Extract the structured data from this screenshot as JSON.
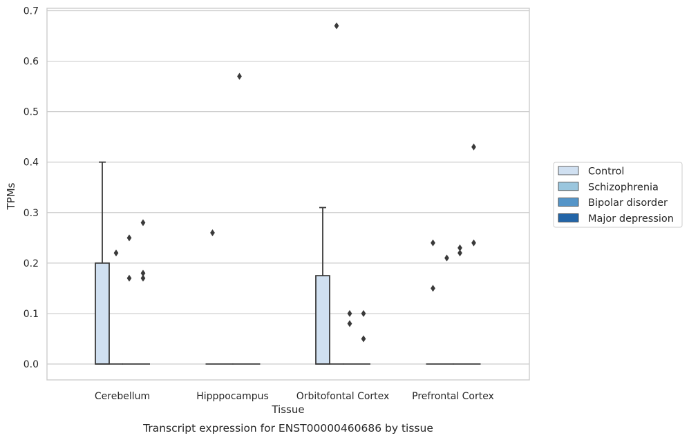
{
  "chart_data": {
    "type": "box",
    "caption": "Transcript expression for ENST00000460686 by tissue",
    "xlabel": "Tissue",
    "ylabel": "TPMs",
    "ylim": [
      -0.032,
      0.705
    ],
    "yticks": [
      0.0,
      0.1,
      0.2,
      0.3,
      0.4,
      0.5,
      0.6,
      0.7
    ],
    "ytick_labels": [
      "0.0",
      "0.1",
      "0.2",
      "0.3",
      "0.4",
      "0.5",
      "0.6",
      "0.7"
    ],
    "grid": true,
    "legend_position": "right",
    "categories": [
      "Cerebellum",
      "Hipppocampus",
      "Orbitofontal Cortex",
      "Prefrontal Cortex"
    ],
    "series": [
      {
        "name": "Control",
        "color": "#d0e0f1"
      },
      {
        "name": "Schizophrenia",
        "color": "#9ac6de"
      },
      {
        "name": "Bipolar disorder",
        "color": "#5595c8"
      },
      {
        "name": "Major depression",
        "color": "#2365a7"
      }
    ],
    "boxes": [
      {
        "category": "Cerebellum",
        "series": "Control",
        "q1": 0.0,
        "median": 0.0,
        "q3": 0.2,
        "whisker_low": 0.0,
        "whisker_high": 0.4,
        "outliers": []
      },
      {
        "category": "Cerebellum",
        "series": "Schizophrenia",
        "q1": 0.0,
        "median": 0.0,
        "q3": 0.0,
        "whisker_low": 0.0,
        "whisker_high": 0.0,
        "outliers": [
          0.22
        ]
      },
      {
        "category": "Cerebellum",
        "series": "Bipolar disorder",
        "q1": 0.0,
        "median": 0.0,
        "q3": 0.0,
        "whisker_low": 0.0,
        "whisker_high": 0.0,
        "outliers": [
          0.25,
          0.17
        ]
      },
      {
        "category": "Cerebellum",
        "series": "Major depression",
        "q1": 0.0,
        "median": 0.0,
        "q3": 0.0,
        "whisker_low": 0.0,
        "whisker_high": 0.0,
        "outliers": [
          0.28,
          0.18,
          0.17
        ]
      },
      {
        "category": "Hipppocampus",
        "series": "Control",
        "q1": 0.0,
        "median": 0.0,
        "q3": 0.0,
        "whisker_low": 0.0,
        "whisker_high": 0.0,
        "outliers": [
          0.26
        ]
      },
      {
        "category": "Hipppocampus",
        "series": "Schizophrenia",
        "q1": 0.0,
        "median": 0.0,
        "q3": 0.0,
        "whisker_low": 0.0,
        "whisker_high": 0.0,
        "outliers": []
      },
      {
        "category": "Hipppocampus",
        "series": "Bipolar disorder",
        "q1": 0.0,
        "median": 0.0,
        "q3": 0.0,
        "whisker_low": 0.0,
        "whisker_high": 0.0,
        "outliers": [
          0.57
        ]
      },
      {
        "category": "Hipppocampus",
        "series": "Major depression",
        "q1": 0.0,
        "median": 0.0,
        "q3": 0.0,
        "whisker_low": 0.0,
        "whisker_high": 0.0,
        "outliers": []
      },
      {
        "category": "Orbitofontal Cortex",
        "series": "Control",
        "q1": 0.0,
        "median": 0.0,
        "q3": 0.175,
        "whisker_low": 0.0,
        "whisker_high": 0.31,
        "outliers": []
      },
      {
        "category": "Orbitofontal Cortex",
        "series": "Schizophrenia",
        "q1": 0.0,
        "median": 0.0,
        "q3": 0.0,
        "whisker_low": 0.0,
        "whisker_high": 0.0,
        "outliers": [
          0.67
        ]
      },
      {
        "category": "Orbitofontal Cortex",
        "series": "Bipolar disorder",
        "q1": 0.0,
        "median": 0.0,
        "q3": 0.0,
        "whisker_low": 0.0,
        "whisker_high": 0.0,
        "outliers": [
          0.1,
          0.08
        ]
      },
      {
        "category": "Orbitofontal Cortex",
        "series": "Major depression",
        "q1": 0.0,
        "median": 0.0,
        "q3": 0.0,
        "whisker_low": 0.0,
        "whisker_high": 0.0,
        "outliers": [
          0.1,
          0.05
        ]
      },
      {
        "category": "Prefrontal Cortex",
        "series": "Control",
        "q1": 0.0,
        "median": 0.0,
        "q3": 0.0,
        "whisker_low": 0.0,
        "whisker_high": 0.0,
        "outliers": [
          0.24,
          0.15
        ]
      },
      {
        "category": "Prefrontal Cortex",
        "series": "Schizophrenia",
        "q1": 0.0,
        "median": 0.0,
        "q3": 0.0,
        "whisker_low": 0.0,
        "whisker_high": 0.0,
        "outliers": [
          0.21
        ]
      },
      {
        "category": "Prefrontal Cortex",
        "series": "Bipolar disorder",
        "q1": 0.0,
        "median": 0.0,
        "q3": 0.0,
        "whisker_low": 0.0,
        "whisker_high": 0.0,
        "outliers": [
          0.23,
          0.22
        ]
      },
      {
        "category": "Prefrontal Cortex",
        "series": "Major depression",
        "q1": 0.0,
        "median": 0.0,
        "q3": 0.0,
        "whisker_low": 0.0,
        "whisker_high": 0.0,
        "outliers": [
          0.43,
          0.24
        ]
      }
    ]
  }
}
